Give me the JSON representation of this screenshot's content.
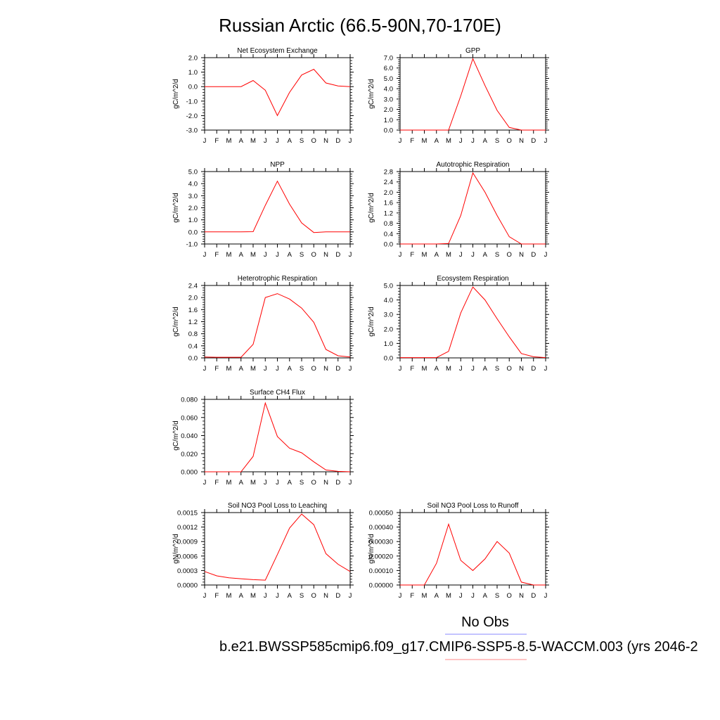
{
  "title": "Russian Arctic (66.5-90N,70-170E)",
  "legend": {
    "obs_label": "No Obs",
    "obs_color": "#8a8aff",
    "case_label": "b.e21.BWSSP585cmip6.f09_g17.CMIP6-SSP5-8.5-WACCM.003 (yrs 2046-2",
    "case_color": "#ff8a8a"
  },
  "line_color": "#ff0000",
  "chart_data": [
    {
      "type": "line",
      "title": "Net Ecosystem Exchange",
      "ylabel": "gC/m^2/d",
      "categories": [
        "J",
        "F",
        "M",
        "A",
        "M",
        "J",
        "J",
        "A",
        "S",
        "O",
        "N",
        "D",
        "J"
      ],
      "ylim": [
        -3.0,
        2.0
      ],
      "yticks": [
        -3.0,
        -2.0,
        -1.0,
        0.0,
        1.0,
        2.0
      ],
      "ytick_labels": [
        "-3.0",
        "-2.0",
        "-1.0",
        "0.0",
        "1.0",
        "2.0"
      ],
      "values": [
        0.0,
        0.0,
        0.0,
        0.0,
        0.42,
        -0.25,
        -2.0,
        -0.4,
        0.8,
        1.2,
        0.25,
        0.05,
        0.0
      ]
    },
    {
      "type": "line",
      "title": "GPP",
      "ylabel": "gC/m^2/d",
      "categories": [
        "J",
        "F",
        "M",
        "A",
        "M",
        "J",
        "J",
        "A",
        "S",
        "O",
        "N",
        "D",
        "J"
      ],
      "ylim": [
        0.0,
        7.0
      ],
      "yticks": [
        0.0,
        1.0,
        2.0,
        3.0,
        4.0,
        5.0,
        6.0,
        7.0
      ],
      "ytick_labels": [
        "0.0",
        "1.0",
        "2.0",
        "3.0",
        "4.0",
        "5.0",
        "6.0",
        "7.0"
      ],
      "values": [
        0.0,
        0.0,
        0.0,
        0.0,
        0.0,
        3.3,
        6.9,
        4.3,
        1.9,
        0.25,
        0.0,
        0.0,
        0.0
      ]
    },
    {
      "type": "line",
      "title": "NPP",
      "ylabel": "gC/m^2/d",
      "categories": [
        "J",
        "F",
        "M",
        "A",
        "M",
        "J",
        "J",
        "A",
        "S",
        "O",
        "N",
        "D",
        "J"
      ],
      "ylim": [
        -1.0,
        5.0
      ],
      "yticks": [
        -1.0,
        0.0,
        1.0,
        2.0,
        3.0,
        4.0,
        5.0
      ],
      "ytick_labels": [
        "-1.0",
        "0.0",
        "1.0",
        "2.0",
        "3.0",
        "4.0",
        "5.0"
      ],
      "values": [
        0.0,
        0.0,
        0.0,
        0.0,
        0.02,
        2.2,
        4.2,
        2.3,
        0.75,
        -0.05,
        0.0,
        0.0,
        0.0
      ]
    },
    {
      "type": "line",
      "title": "Autotrophic Respiration",
      "ylabel": "gC/m^2/d",
      "categories": [
        "J",
        "F",
        "M",
        "A",
        "M",
        "J",
        "J",
        "A",
        "S",
        "O",
        "N",
        "D",
        "J"
      ],
      "ylim": [
        0.0,
        2.8
      ],
      "yticks": [
        0.0,
        0.4,
        0.8,
        1.2,
        1.6,
        2.0,
        2.4,
        2.8
      ],
      "ytick_labels": [
        "0.0",
        "0.4",
        "0.8",
        "1.2",
        "1.6",
        "2.0",
        "2.4",
        "2.8"
      ],
      "values": [
        0.0,
        0.0,
        0.0,
        0.0,
        0.02,
        1.1,
        2.75,
        2.0,
        1.1,
        0.28,
        0.0,
        0.0,
        0.0
      ]
    },
    {
      "type": "line",
      "title": "Heterotrophic Respiration",
      "ylabel": "gC/m^2/d",
      "categories": [
        "J",
        "F",
        "M",
        "A",
        "M",
        "J",
        "J",
        "A",
        "S",
        "O",
        "N",
        "D",
        "J"
      ],
      "ylim": [
        0.0,
        2.4
      ],
      "yticks": [
        0.0,
        0.4,
        0.8,
        1.2,
        1.6,
        2.0,
        2.4
      ],
      "ytick_labels": [
        "0.0",
        "0.4",
        "0.8",
        "1.2",
        "1.6",
        "2.0",
        "2.4"
      ],
      "values": [
        0.03,
        0.02,
        0.02,
        0.02,
        0.45,
        2.0,
        2.13,
        1.95,
        1.65,
        1.18,
        0.28,
        0.07,
        0.03
      ]
    },
    {
      "type": "line",
      "title": "Ecosystem Respiration",
      "ylabel": "gC/m^2/d",
      "categories": [
        "J",
        "F",
        "M",
        "A",
        "M",
        "J",
        "J",
        "A",
        "S",
        "O",
        "N",
        "D",
        "J"
      ],
      "ylim": [
        0.0,
        5.0
      ],
      "yticks": [
        0.0,
        1.0,
        2.0,
        3.0,
        4.0,
        5.0
      ],
      "ytick_labels": [
        "0.0",
        "1.0",
        "2.0",
        "3.0",
        "4.0",
        "5.0"
      ],
      "values": [
        0.02,
        0.02,
        0.02,
        0.02,
        0.45,
        3.1,
        4.9,
        4.0,
        2.7,
        1.45,
        0.3,
        0.08,
        0.02
      ]
    },
    {
      "type": "line",
      "title": "Surface CH4 Flux",
      "ylabel": "gC/m^2/d",
      "categories": [
        "J",
        "F",
        "M",
        "A",
        "M",
        "J",
        "J",
        "A",
        "S",
        "O",
        "N",
        "D",
        "J"
      ],
      "ylim": [
        0.0,
        0.08
      ],
      "yticks": [
        0.0,
        0.02,
        0.04,
        0.06,
        0.08
      ],
      "ytick_labels": [
        "0.000",
        "0.020",
        "0.040",
        "0.060",
        "0.080"
      ],
      "values": [
        0.0,
        0.0,
        0.0,
        0.0,
        0.017,
        0.076,
        0.039,
        0.026,
        0.021,
        0.011,
        0.002,
        0.0005,
        0.0
      ]
    },
    {
      "type": "line",
      "title": "Soil NO3 Pool Loss to Leaching",
      "ylabel": "gN/m^2/d",
      "categories": [
        "J",
        "F",
        "M",
        "A",
        "M",
        "J",
        "J",
        "A",
        "S",
        "O",
        "N",
        "D",
        "J"
      ],
      "ylim": [
        0.0,
        0.0015
      ],
      "yticks": [
        0.0,
        0.0003,
        0.0006,
        0.0009,
        0.0012,
        0.0015
      ],
      "ytick_labels": [
        "0.0000",
        "0.0003",
        "0.0006",
        "0.0009",
        "0.0012",
        "0.0015"
      ],
      "values": [
        0.00028,
        0.00019,
        0.00015,
        0.00013,
        0.00011,
        0.0001,
        0.00063,
        0.00118,
        0.00147,
        0.00125,
        0.00065,
        0.00043,
        0.00028
      ]
    },
    {
      "type": "line",
      "title": "Soil NO3 Pool Loss to Runoff",
      "ylabel": "gN/m^2/d",
      "categories": [
        "J",
        "F",
        "M",
        "A",
        "M",
        "J",
        "J",
        "A",
        "S",
        "O",
        "N",
        "D",
        "J"
      ],
      "ylim": [
        0.0,
        0.0005
      ],
      "yticks": [
        0.0,
        0.0001,
        0.0002,
        0.0003,
        0.0004,
        0.0005
      ],
      "ytick_labels": [
        "0.00000",
        "0.00010",
        "0.00020",
        "0.00030",
        "0.00040",
        "0.00050"
      ],
      "values": [
        0.0,
        0.0,
        0.0,
        0.00015,
        0.00042,
        0.00017,
        0.0001,
        0.00018,
        0.0003,
        0.00022,
        2e-05,
        0.0,
        0.0
      ]
    }
  ]
}
